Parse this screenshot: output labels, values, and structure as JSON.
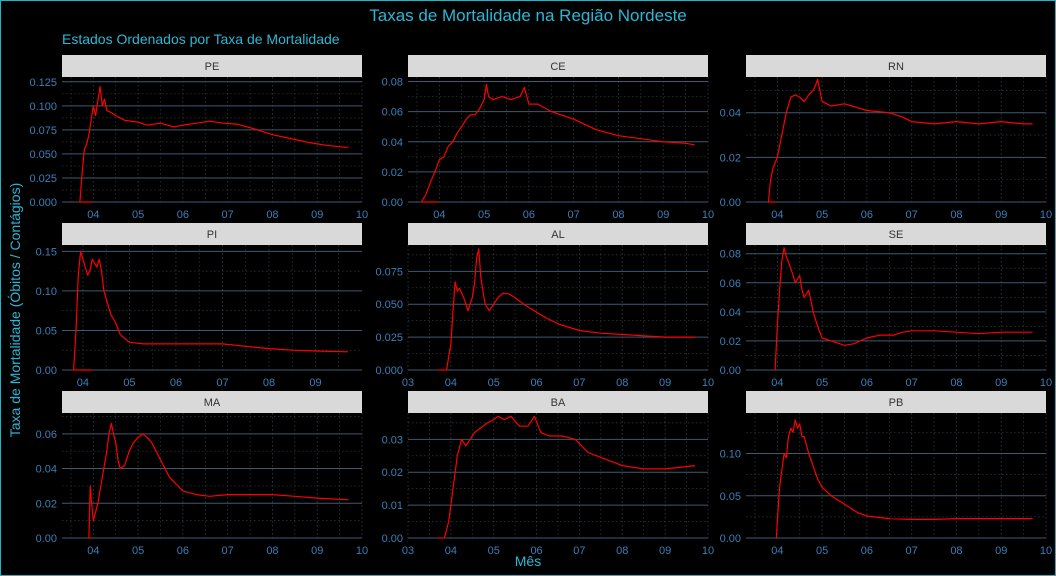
{
  "title": "Taxas de Mortalidade na Região Nordeste",
  "subtitle": "Estados Ordenados por Taxa de Mortalidade",
  "xlabel": "Mês",
  "ylabel": "Taxa de Mortalidade (Óbitos / Contágios)",
  "colors": {
    "line": "#ff0000",
    "background": "#000000",
    "text": "#2bb8d6",
    "tick": "#3a7fb8",
    "grid_major": "#3d5a70",
    "grid_minor": "#2f3a45",
    "strip": "#d9d9d9",
    "strip_text": "#333333",
    "frame": "#1fb5c9"
  },
  "chart_data": {
    "type": "line",
    "facet_order": [
      "PE",
      "CE",
      "RN",
      "PI",
      "AL",
      "SE",
      "MA",
      "BA",
      "PB"
    ],
    "x_unit": "month of 2020",
    "grid": "on",
    "panels": [
      {
        "name": "PE",
        "xlim": [
          3.3,
          10.0
        ],
        "xticks": [
          4,
          5,
          6,
          7,
          8,
          9,
          10
        ],
        "xtick_labels": [
          "04",
          "05",
          "06",
          "07",
          "08",
          "09",
          "10"
        ],
        "ylim": [
          0,
          0.13
        ],
        "yticks": [
          0,
          0.025,
          0.05,
          0.075,
          0.1,
          0.125
        ],
        "ytick_labels": [
          "0.000",
          "0.025",
          "0.050",
          "0.075",
          "0.100",
          "0.125"
        ],
        "x": [
          3.7,
          3.75,
          3.8,
          3.85,
          3.9,
          4.0,
          4.05,
          4.1,
          4.15,
          4.2,
          4.25,
          4.3,
          4.4,
          4.5,
          4.7,
          5.0,
          5.2,
          5.5,
          5.8,
          6.0,
          6.3,
          6.6,
          6.9,
          7.2,
          7.6,
          8.0,
          8.4,
          8.8,
          9.2,
          9.6,
          9.7
        ],
        "y": [
          0,
          0.03,
          0.055,
          0.06,
          0.07,
          0.1,
          0.09,
          0.105,
          0.12,
          0.1,
          0.107,
          0.095,
          0.093,
          0.09,
          0.085,
          0.083,
          0.08,
          0.082,
          0.078,
          0.08,
          0.082,
          0.084,
          0.082,
          0.081,
          0.076,
          0.07,
          0.066,
          0.062,
          0.059,
          0.057,
          0.057
        ]
      },
      {
        "name": "CE",
        "xlim": [
          3.3,
          10.0
        ],
        "xticks": [
          4,
          5,
          6,
          7,
          8,
          9,
          10
        ],
        "xtick_labels": [
          "04",
          "05",
          "06",
          "07",
          "08",
          "09",
          "10"
        ],
        "ylim": [
          0,
          0.083
        ],
        "yticks": [
          0,
          0.02,
          0.04,
          0.06,
          0.08
        ],
        "ytick_labels": [
          "0.00",
          "0.02",
          "0.04",
          "0.06",
          "0.08"
        ],
        "x": [
          3.6,
          3.7,
          3.8,
          3.9,
          4.0,
          4.1,
          4.2,
          4.3,
          4.4,
          4.5,
          4.6,
          4.7,
          4.8,
          4.9,
          5.0,
          5.05,
          5.1,
          5.2,
          5.4,
          5.6,
          5.8,
          5.9,
          6.0,
          6.2,
          6.5,
          7.0,
          7.5,
          8.0,
          8.5,
          9.0,
          9.5,
          9.7
        ],
        "y": [
          0,
          0.005,
          0.013,
          0.02,
          0.028,
          0.03,
          0.037,
          0.04,
          0.046,
          0.05,
          0.055,
          0.058,
          0.058,
          0.062,
          0.068,
          0.078,
          0.07,
          0.068,
          0.07,
          0.068,
          0.07,
          0.076,
          0.065,
          0.065,
          0.06,
          0.055,
          0.048,
          0.044,
          0.042,
          0.04,
          0.039,
          0.038
        ]
      },
      {
        "name": "RN",
        "xlim": [
          3.3,
          10.0
        ],
        "xticks": [
          4,
          5,
          6,
          7,
          8,
          9,
          10
        ],
        "xtick_labels": [
          "04",
          "05",
          "06",
          "07",
          "08",
          "09",
          "10"
        ],
        "ylim": [
          0,
          0.056
        ],
        "yticks": [
          0,
          0.02,
          0.04
        ],
        "ytick_labels": [
          "0.00",
          "0.02",
          "0.04"
        ],
        "x": [
          3.8,
          3.85,
          3.9,
          4.0,
          4.1,
          4.2,
          4.3,
          4.4,
          4.5,
          4.6,
          4.7,
          4.8,
          4.85,
          4.9,
          5.0,
          5.2,
          5.5,
          6.0,
          6.5,
          6.8,
          7.0,
          7.5,
          8.0,
          8.5,
          9.0,
          9.5,
          9.7
        ],
        "y": [
          0,
          0.01,
          0.015,
          0.02,
          0.03,
          0.04,
          0.047,
          0.048,
          0.047,
          0.045,
          0.048,
          0.05,
          0.052,
          0.055,
          0.045,
          0.043,
          0.044,
          0.041,
          0.04,
          0.038,
          0.036,
          0.035,
          0.036,
          0.035,
          0.036,
          0.035,
          0.035
        ]
      },
      {
        "name": "PI",
        "xlim": [
          3.55,
          10.0
        ],
        "xticks": [
          4,
          5,
          6,
          7,
          8,
          9
        ],
        "xtick_labels": [
          "04",
          "05",
          "06",
          "07",
          "08",
          "09"
        ],
        "ylim": [
          0,
          0.158
        ],
        "yticks": [
          0,
          0.05,
          0.1,
          0.15
        ],
        "ytick_labels": [
          "0.00",
          "0.05",
          "0.10",
          "0.15"
        ],
        "x": [
          3.8,
          3.85,
          3.9,
          3.95,
          4.0,
          4.05,
          4.1,
          4.15,
          4.2,
          4.3,
          4.35,
          4.4,
          4.45,
          4.5,
          4.6,
          4.7,
          4.8,
          5.0,
          5.3,
          5.8,
          6.3,
          7.0,
          7.5,
          8.0,
          8.5,
          9.0,
          9.7
        ],
        "y": [
          0,
          0.05,
          0.12,
          0.15,
          0.14,
          0.13,
          0.12,
          0.125,
          0.14,
          0.13,
          0.14,
          0.125,
          0.1,
          0.09,
          0.07,
          0.06,
          0.045,
          0.035,
          0.033,
          0.033,
          0.033,
          0.033,
          0.03,
          0.027,
          0.025,
          0.024,
          0.023
        ]
      },
      {
        "name": "AL",
        "xlim": [
          3.0,
          10.0
        ],
        "xticks": [
          3,
          4,
          5,
          6,
          7,
          8,
          9,
          10
        ],
        "xtick_labels": [
          "03",
          "04",
          "05",
          "06",
          "07",
          "08",
          "09",
          "10"
        ],
        "ylim": [
          0,
          0.095
        ],
        "yticks": [
          0,
          0.025,
          0.05,
          0.075
        ],
        "ytick_labels": [
          "0.000",
          "0.025",
          "0.050",
          "0.075"
        ],
        "x": [
          3.9,
          3.95,
          4.0,
          4.05,
          4.1,
          4.15,
          4.2,
          4.3,
          4.4,
          4.5,
          4.55,
          4.6,
          4.65,
          4.7,
          4.8,
          4.9,
          5.0,
          5.1,
          5.2,
          5.35,
          5.5,
          5.7,
          5.9,
          6.2,
          6.5,
          7.0,
          7.5,
          8.0,
          8.5,
          9.0,
          9.7
        ],
        "y": [
          0,
          0.01,
          0.02,
          0.045,
          0.067,
          0.06,
          0.062,
          0.055,
          0.045,
          0.055,
          0.065,
          0.085,
          0.092,
          0.07,
          0.05,
          0.045,
          0.05,
          0.055,
          0.058,
          0.058,
          0.055,
          0.05,
          0.046,
          0.04,
          0.035,
          0.03,
          0.028,
          0.027,
          0.026,
          0.025,
          0.025
        ]
      },
      {
        "name": "SE",
        "xlim": [
          3.3,
          10.0
        ],
        "xticks": [
          4,
          5,
          6,
          7,
          8,
          9,
          10
        ],
        "xtick_labels": [
          "04",
          "05",
          "06",
          "07",
          "08",
          "09",
          "10"
        ],
        "ylim": [
          0,
          0.086
        ],
        "yticks": [
          0,
          0.02,
          0.04,
          0.06,
          0.08
        ],
        "ytick_labels": [
          "0.00",
          "0.02",
          "0.04",
          "0.06",
          "0.08"
        ],
        "x": [
          3.95,
          4.0,
          4.05,
          4.1,
          4.15,
          4.2,
          4.3,
          4.4,
          4.5,
          4.55,
          4.6,
          4.7,
          4.8,
          4.9,
          5.0,
          5.2,
          5.5,
          5.7,
          6.0,
          6.3,
          6.6,
          6.8,
          7.0,
          7.5,
          8.0,
          8.5,
          9.0,
          9.7
        ],
        "y": [
          0,
          0.03,
          0.055,
          0.075,
          0.084,
          0.078,
          0.07,
          0.06,
          0.065,
          0.055,
          0.05,
          0.055,
          0.04,
          0.03,
          0.022,
          0.02,
          0.017,
          0.018,
          0.022,
          0.024,
          0.024,
          0.026,
          0.027,
          0.027,
          0.026,
          0.025,
          0.026,
          0.026
        ]
      },
      {
        "name": "MA",
        "xlim": [
          3.3,
          10.0
        ],
        "xticks": [
          4,
          5,
          6,
          7,
          8,
          9,
          10
        ],
        "xtick_labels": [
          "04",
          "05",
          "06",
          "07",
          "08",
          "09",
          "10"
        ],
        "ylim": [
          0,
          0.072
        ],
        "yticks": [
          0,
          0.02,
          0.04,
          0.06
        ],
        "ytick_labels": [
          "0.00",
          "0.02",
          "0.04",
          "0.06"
        ],
        "x": [
          3.9,
          3.93,
          3.96,
          4.0,
          4.05,
          4.1,
          4.2,
          4.3,
          4.35,
          4.4,
          4.45,
          4.5,
          4.55,
          4.6,
          4.7,
          4.8,
          4.9,
          5.0,
          5.1,
          5.2,
          5.3,
          5.5,
          5.7,
          6.0,
          6.3,
          6.6,
          7.0,
          7.5,
          8.0,
          8.5,
          9.0,
          9.7
        ],
        "y": [
          0,
          0.03,
          0.02,
          0.01,
          0.015,
          0.02,
          0.035,
          0.05,
          0.06,
          0.066,
          0.06,
          0.055,
          0.045,
          0.04,
          0.042,
          0.05,
          0.055,
          0.058,
          0.06,
          0.058,
          0.055,
          0.045,
          0.035,
          0.027,
          0.025,
          0.024,
          0.025,
          0.025,
          0.025,
          0.024,
          0.023,
          0.022
        ]
      },
      {
        "name": "BA",
        "xlim": [
          3.0,
          10.0
        ],
        "xticks": [
          3,
          4,
          5,
          6,
          7,
          8,
          9,
          10
        ],
        "xtick_labels": [
          "03",
          "04",
          "05",
          "06",
          "07",
          "08",
          "09",
          "10"
        ],
        "ylim": [
          0,
          0.038
        ],
        "yticks": [
          0,
          0.01,
          0.02,
          0.03
        ],
        "ytick_labels": [
          "0.00",
          "0.01",
          "0.02",
          "0.03"
        ],
        "x": [
          3.85,
          3.95,
          4.05,
          4.15,
          4.25,
          4.35,
          4.45,
          4.55,
          4.65,
          4.75,
          4.85,
          5.0,
          5.1,
          5.25,
          5.4,
          5.6,
          5.8,
          5.95,
          6.1,
          6.3,
          6.6,
          6.9,
          7.2,
          7.6,
          8.0,
          8.5,
          9.0,
          9.7
        ],
        "y": [
          0,
          0.005,
          0.015,
          0.025,
          0.03,
          0.028,
          0.03,
          0.032,
          0.033,
          0.034,
          0.035,
          0.036,
          0.037,
          0.036,
          0.037,
          0.034,
          0.034,
          0.037,
          0.032,
          0.031,
          0.031,
          0.03,
          0.026,
          0.024,
          0.022,
          0.021,
          0.021,
          0.022
        ]
      },
      {
        "name": "PB",
        "xlim": [
          3.3,
          10.0
        ],
        "xticks": [
          4,
          5,
          6,
          7,
          8,
          9,
          10
        ],
        "xtick_labels": [
          "04",
          "05",
          "06",
          "07",
          "08",
          "09",
          "10"
        ],
        "ylim": [
          0,
          0.148
        ],
        "yticks": [
          0,
          0.05,
          0.1
        ],
        "ytick_labels": [
          "0.00",
          "0.05",
          "0.10"
        ],
        "x": [
          3.98,
          4.0,
          4.05,
          4.1,
          4.15,
          4.2,
          4.25,
          4.3,
          4.35,
          4.4,
          4.45,
          4.5,
          4.55,
          4.6,
          4.7,
          4.8,
          4.9,
          5.0,
          5.2,
          5.5,
          5.8,
          6.0,
          6.5,
          7.0,
          7.5,
          8.0,
          8.5,
          9.0,
          9.7
        ],
        "y": [
          0,
          0.02,
          0.06,
          0.08,
          0.1,
          0.095,
          0.12,
          0.13,
          0.125,
          0.14,
          0.13,
          0.135,
          0.12,
          0.12,
          0.1,
          0.085,
          0.07,
          0.06,
          0.05,
          0.04,
          0.03,
          0.026,
          0.023,
          0.022,
          0.022,
          0.023,
          0.023,
          0.023,
          0.023
        ]
      }
    ]
  }
}
